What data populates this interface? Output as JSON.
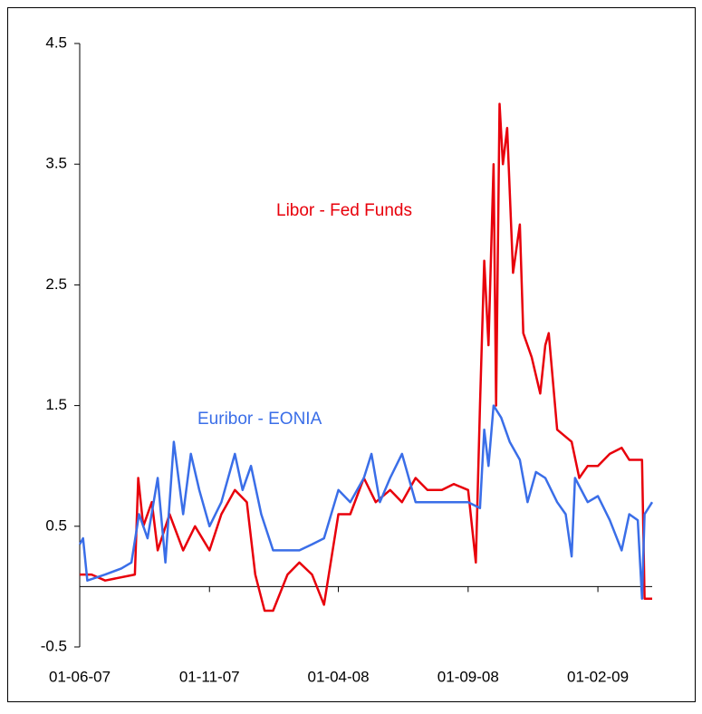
{
  "chart_data": {
    "type": "line",
    "xlim": [
      "2007-06-01",
      "2009-04-06"
    ],
    "xticks": [
      {
        "value": "2007-06-01",
        "label": "01-06-07"
      },
      {
        "value": "2007-11-01",
        "label": "01-11-07"
      },
      {
        "value": "2008-04-01",
        "label": "01-04-08"
      },
      {
        "value": "2008-09-01",
        "label": "01-09-08"
      },
      {
        "value": "2009-02-01",
        "label": "01-02-09"
      }
    ],
    "ylim": [
      -0.5,
      4.5
    ],
    "yticks": [
      -0.5,
      0.5,
      1.5,
      2.5,
      3.5,
      4.5
    ],
    "grid": false,
    "series": [
      {
        "name": "Libor - Fed Funds",
        "color": "#e8000b",
        "x": [
          "2007-06-01",
          "2007-06-15",
          "2007-07-01",
          "2007-08-05",
          "2007-08-09",
          "2007-08-15",
          "2007-08-25",
          "2007-09-01",
          "2007-09-15",
          "2007-10-01",
          "2007-10-15",
          "2007-11-01",
          "2007-11-15",
          "2007-12-01",
          "2007-12-15",
          "2007-12-25",
          "2008-01-05",
          "2008-01-15",
          "2008-02-01",
          "2008-02-15",
          "2008-03-01",
          "2008-03-15",
          "2008-04-01",
          "2008-04-15",
          "2008-05-01",
          "2008-05-15",
          "2008-06-01",
          "2008-06-15",
          "2008-07-01",
          "2008-07-15",
          "2008-08-01",
          "2008-08-15",
          "2008-09-01",
          "2008-09-10",
          "2008-09-15",
          "2008-09-20",
          "2008-09-25",
          "2008-10-01",
          "2008-10-04",
          "2008-10-08",
          "2008-10-12",
          "2008-10-17",
          "2008-10-24",
          "2008-11-01",
          "2008-11-05",
          "2008-11-15",
          "2008-11-25",
          "2008-12-01",
          "2008-12-05",
          "2008-12-15",
          "2009-01-01",
          "2009-01-10",
          "2009-01-20",
          "2009-02-01",
          "2009-02-15",
          "2009-03-01",
          "2009-03-10",
          "2009-03-25",
          "2009-03-28",
          "2009-04-06"
        ],
        "values": [
          0.1,
          0.1,
          0.05,
          0.1,
          0.9,
          0.5,
          0.7,
          0.3,
          0.6,
          0.3,
          0.5,
          0.3,
          0.6,
          0.8,
          0.7,
          0.1,
          -0.2,
          -0.2,
          0.1,
          0.2,
          0.1,
          -0.15,
          0.6,
          0.6,
          0.9,
          0.7,
          0.8,
          0.7,
          0.9,
          0.8,
          0.8,
          0.85,
          0.8,
          0.2,
          1.5,
          2.7,
          2.0,
          3.5,
          1.5,
          4.0,
          3.5,
          3.8,
          2.6,
          3.0,
          2.1,
          1.9,
          1.6,
          2.0,
          2.1,
          1.3,
          1.2,
          0.9,
          1.0,
          1.0,
          1.1,
          1.15,
          1.05,
          1.05,
          -0.1,
          -0.1
        ]
      },
      {
        "name": "Euribor - EONIA",
        "color": "#3a6ee8",
        "x": [
          "2007-06-01",
          "2007-06-05",
          "2007-06-10",
          "2007-07-01",
          "2007-07-20",
          "2007-08-01",
          "2007-08-10",
          "2007-08-20",
          "2007-09-01",
          "2007-09-10",
          "2007-09-20",
          "2007-10-01",
          "2007-10-10",
          "2007-10-20",
          "2007-11-01",
          "2007-11-15",
          "2007-12-01",
          "2007-12-10",
          "2007-12-20",
          "2008-01-01",
          "2008-01-15",
          "2008-02-01",
          "2008-02-15",
          "2008-03-01",
          "2008-03-15",
          "2008-04-01",
          "2008-04-15",
          "2008-05-01",
          "2008-05-10",
          "2008-05-20",
          "2008-06-01",
          "2008-06-15",
          "2008-07-01",
          "2008-07-15",
          "2008-08-01",
          "2008-08-15",
          "2008-09-01",
          "2008-09-15",
          "2008-09-20",
          "2008-09-25",
          "2008-10-01",
          "2008-10-10",
          "2008-10-20",
          "2008-11-01",
          "2008-11-10",
          "2008-11-20",
          "2008-12-01",
          "2008-12-15",
          "2008-12-25",
          "2009-01-01",
          "2009-01-05",
          "2009-01-20",
          "2009-02-01",
          "2009-02-15",
          "2009-03-01",
          "2009-03-10",
          "2009-03-20",
          "2009-03-25",
          "2009-03-28",
          "2009-04-06"
        ],
        "values": [
          0.35,
          0.4,
          0.05,
          0.1,
          0.15,
          0.2,
          0.6,
          0.4,
          0.9,
          0.2,
          1.2,
          0.6,
          1.1,
          0.8,
          0.5,
          0.7,
          1.1,
          0.8,
          1.0,
          0.6,
          0.3,
          0.3,
          0.3,
          0.35,
          0.4,
          0.8,
          0.7,
          0.9,
          1.1,
          0.7,
          0.9,
          1.1,
          0.7,
          0.7,
          0.7,
          0.7,
          0.7,
          0.65,
          1.3,
          1.0,
          1.5,
          1.4,
          1.2,
          1.05,
          0.7,
          0.95,
          0.9,
          0.7,
          0.6,
          0.25,
          0.9,
          0.7,
          0.75,
          0.55,
          0.3,
          0.6,
          0.55,
          -0.1,
          0.6,
          0.7
        ]
      }
    ]
  }
}
